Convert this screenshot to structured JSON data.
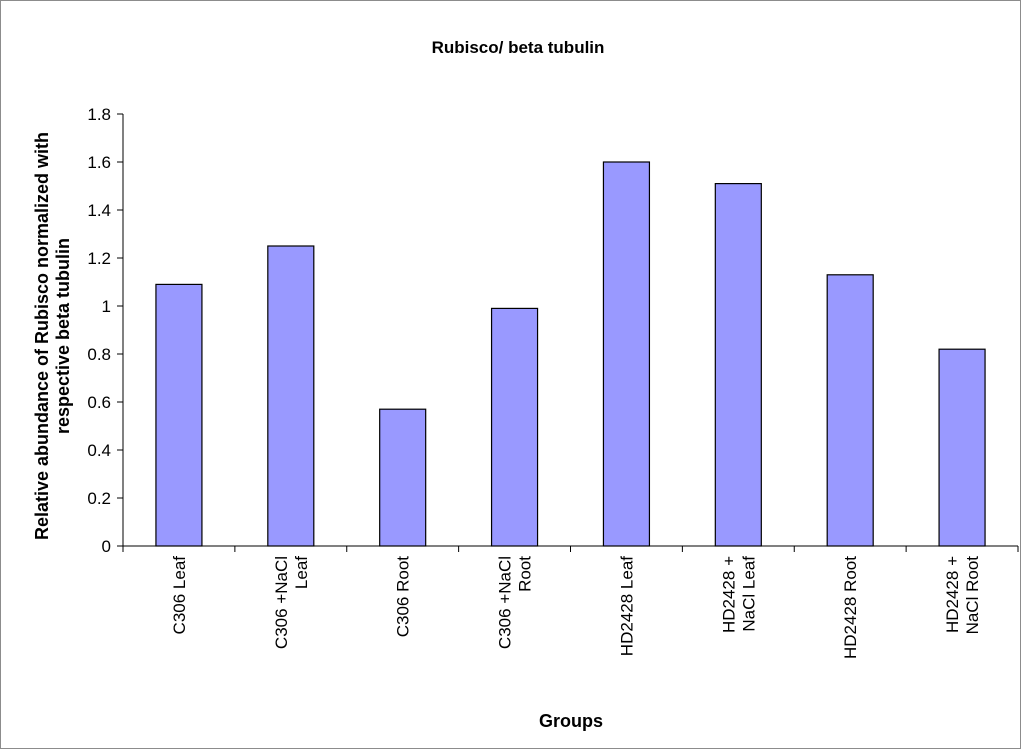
{
  "chart_data": {
    "type": "bar",
    "title": "Rubisco/ beta tubulin",
    "xlabel": "Groups",
    "ylabel_lines": [
      "Relative abundance of Rubisco normalized with",
      "respective beta tubulin"
    ],
    "categories": [
      [
        "C306 Leaf"
      ],
      [
        "C306 +NaCl",
        "Leaf"
      ],
      [
        "C306 Root"
      ],
      [
        "C306 +NaCl",
        "Root"
      ],
      [
        "HD2428 Leaf"
      ],
      [
        "HD2428 +",
        "NaCl Leaf"
      ],
      [
        "HD2428 Root"
      ],
      [
        "HD2428 +",
        "NaCl Root"
      ]
    ],
    "values": [
      1.09,
      1.25,
      0.57,
      0.99,
      1.6,
      1.51,
      1.13,
      0.82
    ],
    "ylim": [
      0,
      1.8
    ],
    "yticks": [
      "0",
      "0.2",
      "0.4",
      "0.6",
      "0.8",
      "1",
      "1.2",
      "1.4",
      "1.6",
      "1.8"
    ],
    "grid": false,
    "legend": "none",
    "colors": {
      "bar_fill": "#9999ff",
      "bar_stroke": "#000000",
      "axis": "#000000"
    }
  }
}
